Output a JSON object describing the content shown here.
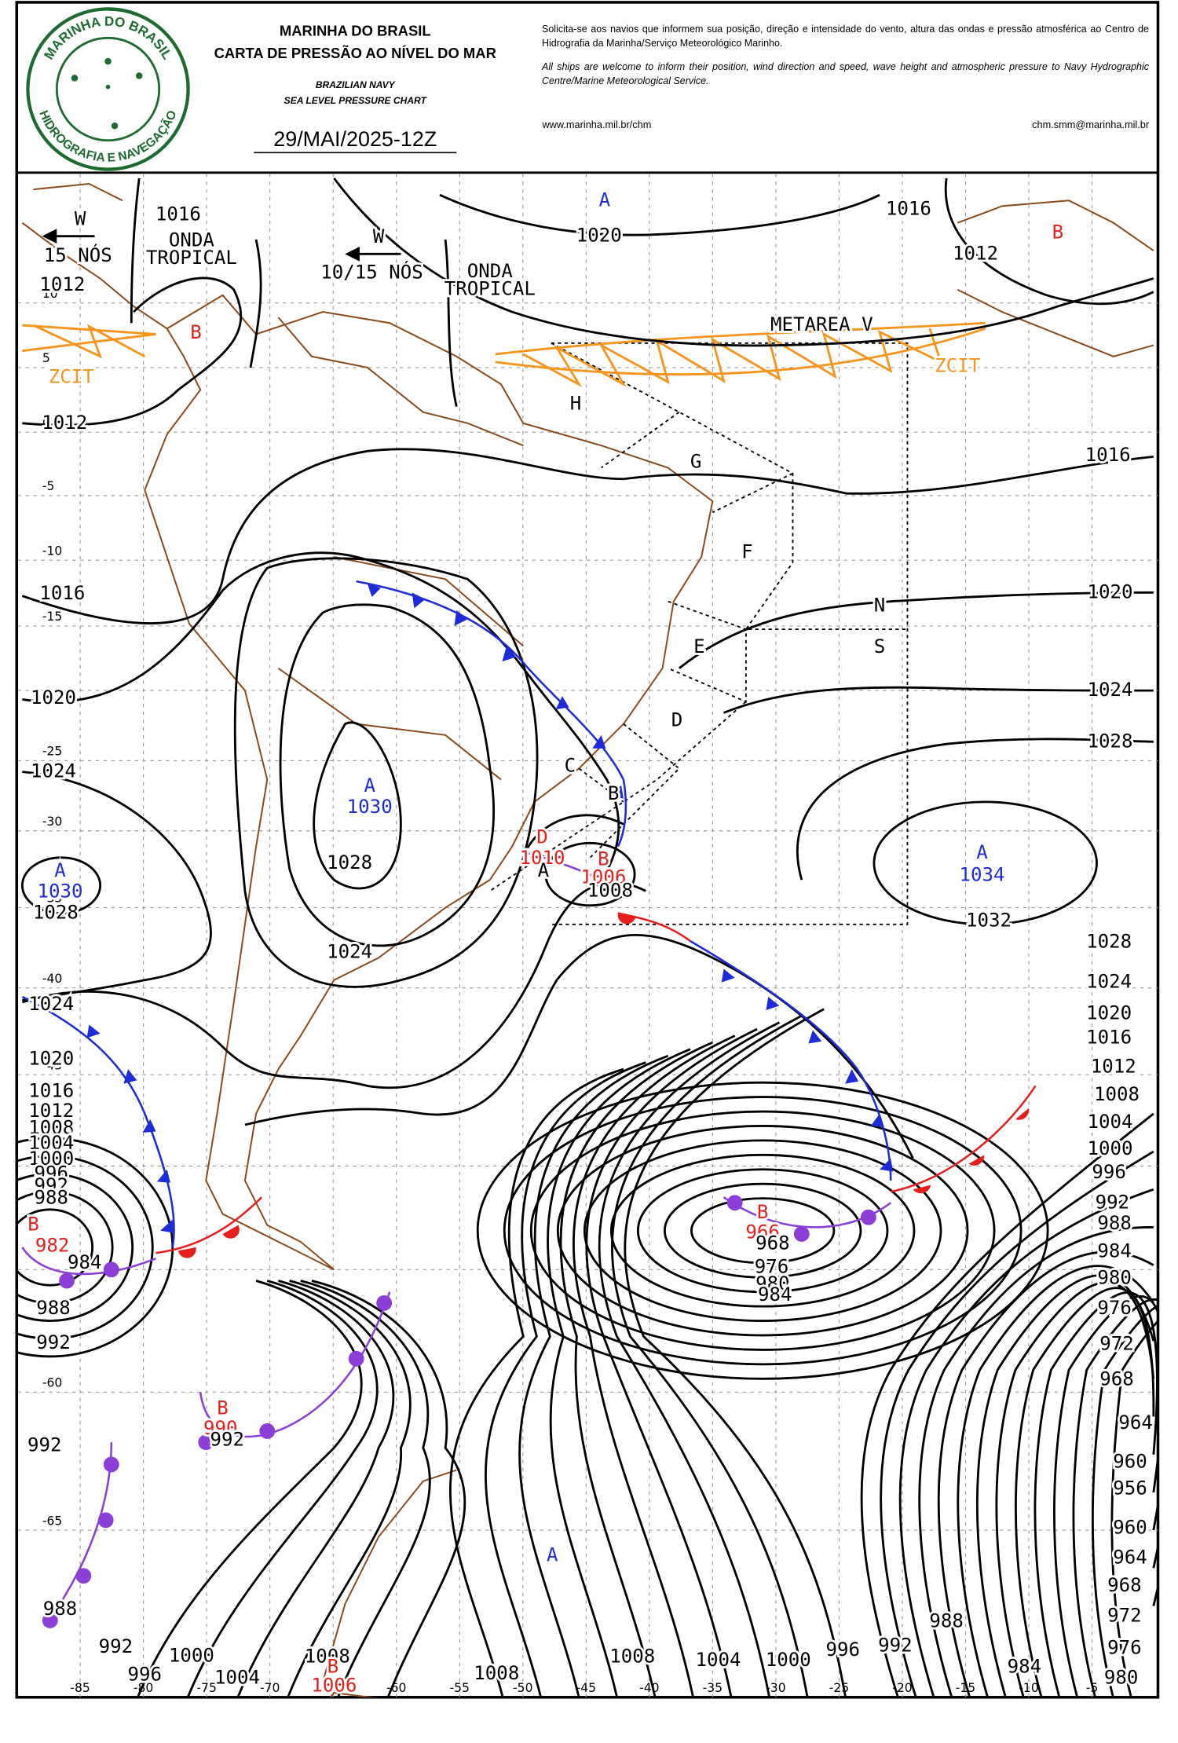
{
  "header": {
    "logo_top": "MARINHA DO BRASIL",
    "logo_bottom": "HIDROGRAFIA E NAVEGAÇÃO",
    "org": "MARINHA DO BRASIL",
    "title": "CARTA DE PRESSÃO AO NÍVEL DO MAR",
    "org_en": "BRAZILIAN NAVY",
    "title_en": "SEA LEVEL PRESSURE CHART",
    "date": "29/MAI/2025-12Z",
    "notice_pt": "Solicita-se aos navios que informem sua posição, direção e intensidade do vento, altura das ondas e pressão atmosférica ao Centro de Hidrografia da Marinha/Serviço Meteorológico Marinho.",
    "notice_en": "All ships are welcome to inform their position, wind direction and speed, wave height and atmospheric pressure to Navy Hydrographic Centre/Marine Meteorological Service.",
    "website": "www.marinha.mil.br/chm",
    "email": "chm.smm@marinha.mil.br"
  },
  "map": {
    "lat_labels": [
      "10",
      "5",
      "0",
      "-5",
      "-10",
      "-15",
      "-25",
      "-30",
      "-35",
      "-40",
      "-45",
      "-60",
      "-65"
    ],
    "lon_labels": [
      "-85",
      "-80",
      "-75",
      "-70",
      "-65",
      "-60",
      "-55",
      "-50",
      "-45",
      "-40",
      "-35",
      "-30",
      "-25",
      "-20",
      "-15",
      "-10",
      "-5"
    ],
    "labels": [
      "A",
      "1020",
      "B",
      "1016",
      "1016",
      "1012",
      "1012",
      "B",
      "1012",
      "1016",
      "1016",
      "1020",
      "1020",
      "1024",
      "1028",
      "1024",
      "A",
      "1030",
      "1028",
      "1024",
      "A",
      "1030",
      "1028",
      "D",
      "1010",
      "B",
      "1006",
      "1008",
      "A",
      "1034",
      "1032",
      "1028",
      "1024",
      "1020",
      "1016",
      "1012",
      "1008",
      "1004",
      "1000",
      "996",
      "992",
      "988",
      "984",
      "980",
      "976",
      "972",
      "968",
      "964",
      "960",
      "956",
      "960",
      "964",
      "968",
      "972",
      "976",
      "980",
      "1024",
      "1020",
      "1016",
      "1012",
      "1008",
      "1004",
      "1000",
      "996",
      "992",
      "988",
      "B",
      "982",
      "984",
      "988",
      "992",
      "B",
      "990",
      "992",
      "992",
      "988",
      "992",
      "996",
      "1000",
      "1004",
      "1008",
      "B",
      "1006",
      "1008",
      "A",
      "1008",
      "1004",
      "1000",
      "996",
      "992",
      "988",
      "984",
      "B",
      "966",
      "968",
      "976",
      "980",
      "984",
      "H",
      "G",
      "F",
      "N",
      "S",
      "E",
      "D",
      "C",
      "B",
      "A",
      "METAREA V",
      "ZCIT",
      "ZCIT",
      "ONDA",
      "TROPICAL",
      "ONDA",
      "TROPICAL",
      "W",
      "15 NÓS",
      "W",
      "10/15 NÓS"
    ]
  }
}
